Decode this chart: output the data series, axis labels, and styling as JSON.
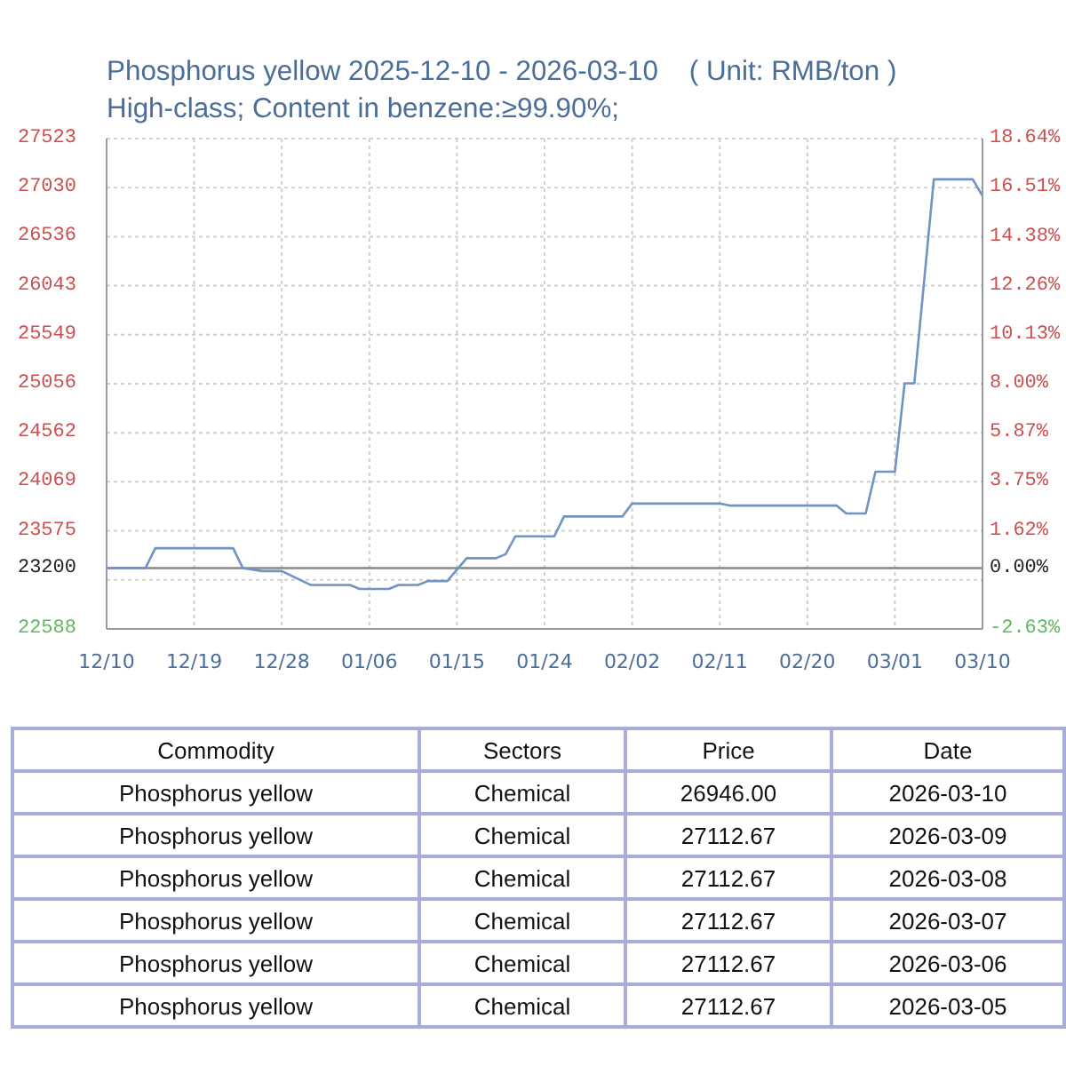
{
  "chart_data": [
    {
      "type": "line",
      "title": "Phosphorus yellow 2025-12-10 - 2026-03-10    ( Unit: RMB/ton )",
      "subtitle": "High-class; Content in benzene:≥99.90%;",
      "x": [
        "2025-12-10",
        "2025-12-14",
        "2025-12-15",
        "2025-12-23",
        "2025-12-24",
        "2025-12-26",
        "2025-12-28",
        "2025-12-31",
        "2026-01-04",
        "2026-01-05",
        "2026-01-08",
        "2026-01-09",
        "2026-01-11",
        "2026-01-12",
        "2026-01-14",
        "2026-01-16",
        "2026-01-19",
        "2026-01-20",
        "2026-01-21",
        "2026-01-25",
        "2026-01-26",
        "2026-02-01",
        "2026-02-02",
        "2026-02-11",
        "2026-02-12",
        "2026-02-23",
        "2026-02-24",
        "2026-02-26",
        "2026-02-27",
        "2026-03-01",
        "2026-03-02",
        "2026-03-03",
        "2026-03-05",
        "2026-03-06",
        "2026-03-07",
        "2026-03-08",
        "2026-03-09",
        "2026-03-10"
      ],
      "series": [
        {
          "color": "#6f93c4",
          "values": [
            23200,
            23200,
            23400,
            23400,
            23200,
            23170,
            23170,
            23030,
            23030,
            22990,
            22990,
            23030,
            23030,
            23070,
            23070,
            23300,
            23300,
            23340,
            23520,
            23520,
            23720,
            23720,
            23850,
            23850,
            23830,
            23830,
            23750,
            23750,
            24170,
            24170,
            25060,
            25060,
            27112.67,
            27112.67,
            27112.67,
            27112.67,
            27112.67,
            26946
          ]
        }
      ],
      "xlim": [
        "2025-12-10",
        "2026-03-10"
      ],
      "xticks": [
        {
          "value": "2025-12-10",
          "label": "12/10"
        },
        {
          "value": "2025-12-19",
          "label": "12/19"
        },
        {
          "value": "2025-12-28",
          "label": "12/28"
        },
        {
          "value": "2026-01-06",
          "label": "01/06"
        },
        {
          "value": "2026-01-15",
          "label": "01/15"
        },
        {
          "value": "2026-01-24",
          "label": "01/24"
        },
        {
          "value": "2026-02-02",
          "label": "02/02"
        },
        {
          "value": "2026-02-11",
          "label": "02/11"
        },
        {
          "value": "2026-02-20",
          "label": "02/20"
        },
        {
          "value": "2026-03-01",
          "label": "03/01"
        },
        {
          "value": "2026-03-10",
          "label": "03/10"
        }
      ],
      "ylim": [
        22588,
        27523
      ],
      "yticks": [
        22588,
        {
          "value": 23082,
          "label": null
        },
        23200,
        23575,
        24069,
        24562,
        25056,
        25549,
        26043,
        26536,
        27030,
        27523
      ],
      "y2lim": [
        -2.63,
        18.64
      ],
      "y2ticks": [
        {
          "value": -2.63,
          "label": "-2.63%"
        },
        {
          "value": 0,
          "label": "0.00%"
        },
        {
          "value": 1.62,
          "label": "1.62%"
        },
        {
          "value": 3.75,
          "label": "3.75%"
        },
        {
          "value": 5.87,
          "label": "5.87%"
        },
        {
          "value": 8,
          "label": "8.00%"
        },
        {
          "value": 10.13,
          "label": "10.13%"
        },
        {
          "value": 12.26,
          "label": "12.26%"
        },
        {
          "value": 14.38,
          "label": "14.38%"
        },
        {
          "value": 16.51,
          "label": "16.51%"
        },
        {
          "value": 18.64,
          "label": "18.64%"
        }
      ],
      "ref_lines": [
        {
          "axis": "y",
          "value": 23200,
          "color": "#8a8a8a"
        }
      ],
      "grid": true,
      "line_style": "solid"
    },
    {
      "type": "other",
      "categories": [
        "Commodity",
        "Sectors",
        "Price",
        "Date"
      ],
      "cell_labels": [
        [
          "Phosphorus yellow",
          "Chemical",
          "26946.00",
          "2026-03-10"
        ],
        [
          "Phosphorus yellow",
          "Chemical",
          "27112.67",
          "2026-03-09"
        ],
        [
          "Phosphorus yellow",
          "Chemical",
          "27112.67",
          "2026-03-08"
        ],
        [
          "Phosphorus yellow",
          "Chemical",
          "27112.67",
          "2026-03-07"
        ],
        [
          "Phosphorus yellow",
          "Chemical",
          "27112.67",
          "2026-03-06"
        ],
        [
          "Phosphorus yellow",
          "Chemical",
          "27112.67",
          "2026-03-05"
        ]
      ]
    }
  ]
}
